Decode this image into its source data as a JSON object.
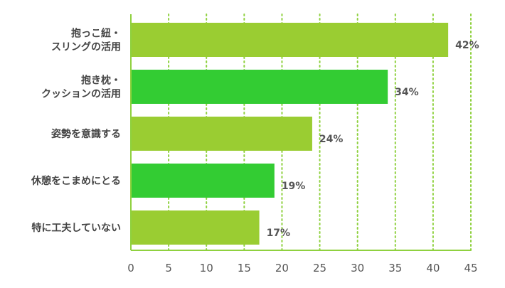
{
  "chart_data": {
    "type": "bar",
    "orientation": "horizontal",
    "categories": [
      "抱っこ紐・\nスリングの活用",
      "抱き枕・\nクッションの活用",
      "姿勢を意識する",
      "休憩をこまめにとる",
      "特に工夫していない"
    ],
    "values": [
      42,
      34,
      24,
      19,
      17
    ],
    "value_labels": [
      "42%",
      "34%",
      "24%",
      "19%",
      "17%"
    ],
    "bar_colors": [
      "#9acd32",
      "#33cc33",
      "#9acd32",
      "#33cc33",
      "#9acd32"
    ],
    "xlim": [
      0,
      45
    ],
    "xticks": [
      0,
      5,
      10,
      15,
      20,
      25,
      30,
      35,
      40,
      45
    ],
    "title": "",
    "xlabel": "",
    "ylabel": "",
    "grid": "vertical-dotted",
    "colors": {
      "grid": "#8fd13f",
      "axis": "#8fd13f"
    }
  }
}
